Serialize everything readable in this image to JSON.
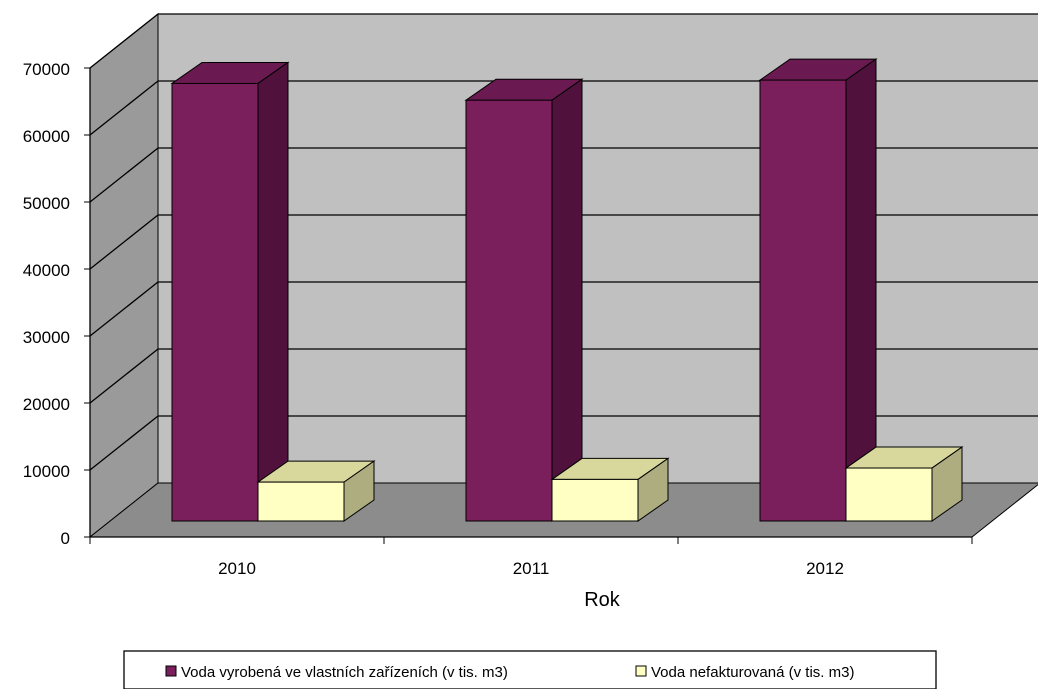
{
  "chart_data": {
    "type": "bar",
    "style": "3d-clustered-column",
    "title": "",
    "xlabel": "Rok",
    "ylabel": "",
    "categories": [
      "2010",
      "2011",
      "2012"
    ],
    "ylim": [
      0,
      70000
    ],
    "yticks": [
      "0",
      "10000",
      "20000",
      "30000",
      "40000",
      "50000",
      "60000",
      "70000"
    ],
    "grid": true,
    "legend_position": "bottom",
    "series": [
      {
        "name": "Voda vyrobená ve vlastních zařízeních (v tis. m3)",
        "values": [
          66500,
          64000,
          67000
        ],
        "color": "#7B1F5C",
        "side_color": "#50123C",
        "top_color": "#6A1A50"
      },
      {
        "name": "Voda nefakturovaná (v tis. m3)",
        "values": [
          7000,
          7400,
          9100
        ],
        "color": "#FFFFC4",
        "side_color": "#ADAD80",
        "top_color": "#D8D89C"
      }
    ],
    "colors": {
      "back_wall": "#C0C0C0",
      "side_wall": "#9A9A9A",
      "floor": "#8C8C8C",
      "grid": "#000000"
    }
  }
}
